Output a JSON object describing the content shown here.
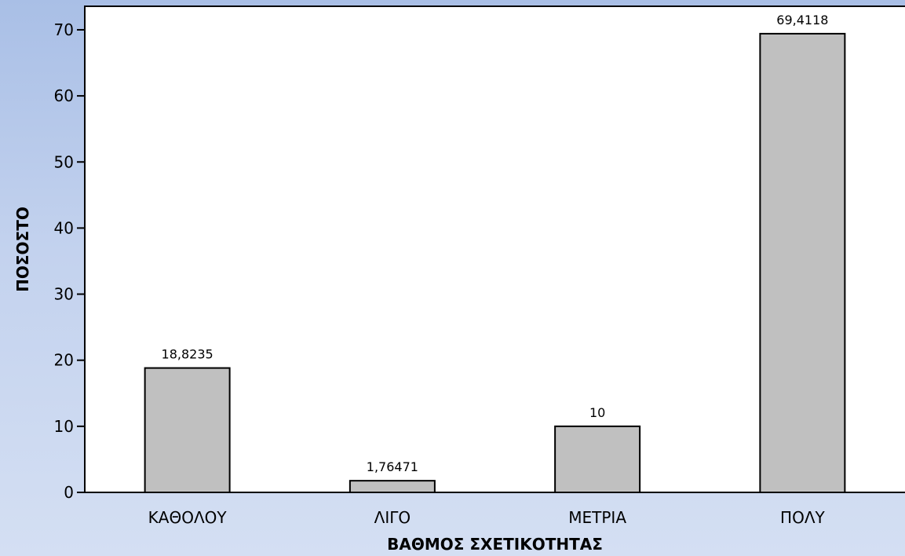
{
  "chart_data": {
    "type": "bar",
    "categories": [
      "ΚΑΘΟΛΟΥ",
      "ΛΙΓΟ",
      "ΜΕΤΡΙΑ",
      "ΠΟΛΥ"
    ],
    "values": [
      18.8235,
      1.76471,
      10,
      69.4118
    ],
    "data_labels": [
      "18,8235",
      "1,76471",
      "10",
      "69,4118"
    ],
    "yticks": [
      0,
      10,
      20,
      30,
      40,
      50,
      60,
      70
    ],
    "ylim": [
      0,
      74
    ],
    "xlabel": "ΒΑΘΜΟΣ ΣΧΕΤΙΚΟΤΗΤΑΣ",
    "ylabel": "ΠΟΣΟΣΤΟ",
    "grid": false,
    "bar_color": "#c0c0c0",
    "plot_background": "#ffffff"
  }
}
